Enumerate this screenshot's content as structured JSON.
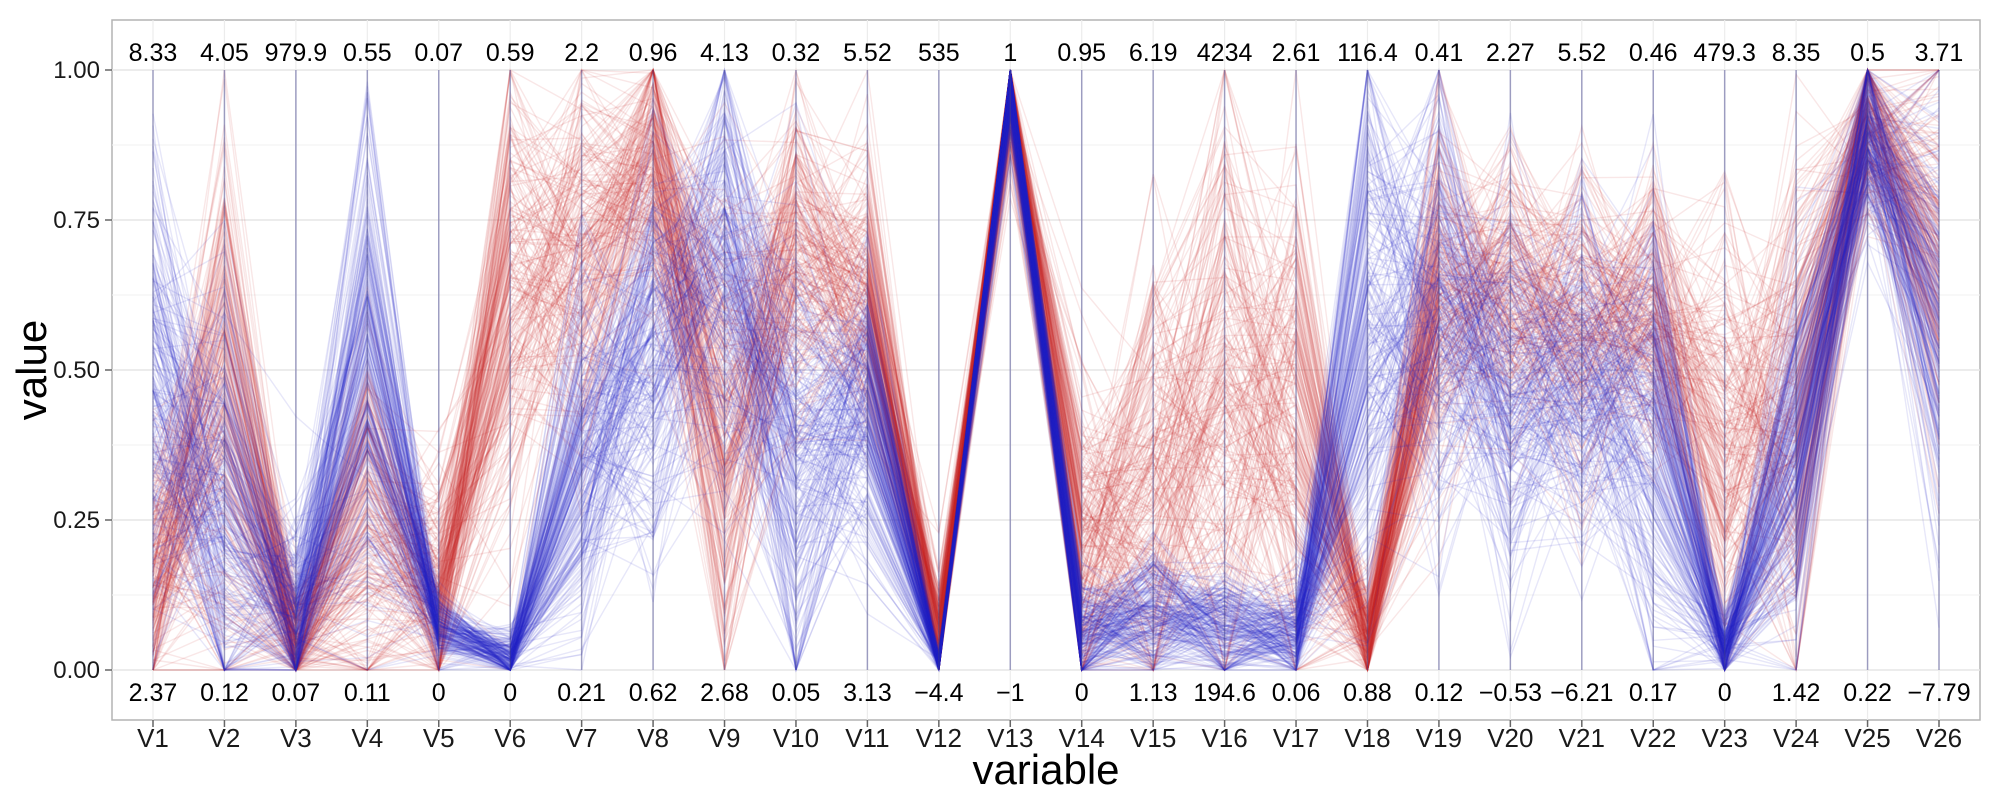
{
  "chart_data": {
    "type": "parallel-coordinates",
    "title": "",
    "xlabel": "variable",
    "ylabel": "value",
    "ylim": [
      0,
      1
    ],
    "y_ticks": [
      "0.00",
      "0.25",
      "0.50",
      "0.75",
      "1.00"
    ],
    "grid": true,
    "legend": "none",
    "variables": [
      "V1",
      "V2",
      "V3",
      "V4",
      "V5",
      "V6",
      "V7",
      "V8",
      "V9",
      "V10",
      "V11",
      "V12",
      "V13",
      "V14",
      "V15",
      "V16",
      "V17",
      "V18",
      "V19",
      "V20",
      "V21",
      "V22",
      "V23",
      "V24",
      "V25",
      "V26"
    ],
    "max_labels": [
      "8.33",
      "4.05",
      "979.9",
      "0.55",
      "0.07",
      "0.59",
      "2.2",
      "0.96",
      "4.13",
      "0.32",
      "5.52",
      "535",
      "1",
      "0.95",
      "6.19",
      "4234",
      "2.61",
      "116.4",
      "0.41",
      "2.27",
      "5.52",
      "0.46",
      "479.3",
      "8.35",
      "0.5",
      "3.71"
    ],
    "min_labels": [
      "2.37",
      "0.12",
      "0.07",
      "0.11",
      "0",
      "0",
      "0.21",
      "0.62",
      "2.68",
      "0.05",
      "3.13",
      "−4.4",
      "−1",
      "0",
      "1.13",
      "194.6",
      "0.06",
      "0.88",
      "0.12",
      "−0.53",
      "−6.21",
      "0.17",
      "0",
      "1.42",
      "0.22",
      "−7.79"
    ],
    "series": [
      {
        "color": "#cc2222",
        "center": [
          0.15,
          0.4,
          0.03,
          0.25,
          0.12,
          0.65,
          0.68,
          0.85,
          0.42,
          0.7,
          0.62,
          0.05,
          0.96,
          0.2,
          0.3,
          0.45,
          0.4,
          0.05,
          0.62,
          0.62,
          0.58,
          0.58,
          0.35,
          0.45,
          0.92,
          0.7
        ],
        "spread": [
          0.12,
          0.25,
          0.05,
          0.15,
          0.1,
          0.2,
          0.15,
          0.12,
          0.22,
          0.15,
          0.12,
          0.05,
          0.05,
          0.15,
          0.2,
          0.25,
          0.22,
          0.05,
          0.15,
          0.12,
          0.12,
          0.12,
          0.2,
          0.2,
          0.08,
          0.15
        ]
      },
      {
        "color": "#2222cc",
        "center": [
          0.45,
          0.25,
          0.08,
          0.5,
          0.07,
          0.02,
          0.35,
          0.55,
          0.65,
          0.35,
          0.45,
          0.01,
          0.97,
          0.05,
          0.1,
          0.08,
          0.06,
          0.55,
          0.58,
          0.45,
          0.48,
          0.4,
          0.03,
          0.35,
          0.9,
          0.6
        ],
        "spread": [
          0.2,
          0.18,
          0.08,
          0.2,
          0.03,
          0.02,
          0.15,
          0.18,
          0.18,
          0.18,
          0.12,
          0.01,
          0.04,
          0.05,
          0.06,
          0.05,
          0.04,
          0.22,
          0.18,
          0.15,
          0.15,
          0.2,
          0.03,
          0.15,
          0.08,
          0.18
        ]
      }
    ]
  }
}
